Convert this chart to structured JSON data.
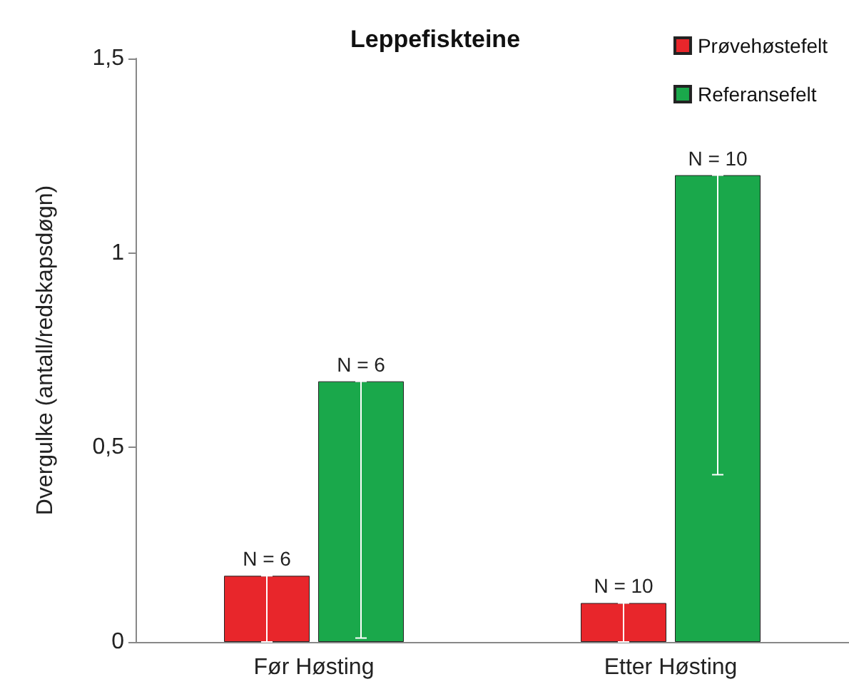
{
  "chart_data": {
    "type": "bar",
    "title": "Leppefiskteine",
    "ylabel": "Dvergulke (antall/redskapsdøgn)",
    "categories": [
      "Før Høsting",
      "Etter Høsting"
    ],
    "series": [
      {
        "name": "Prøvehøstefelt",
        "color": "#e8262b",
        "values": [
          0.17,
          0.1
        ],
        "errors": [
          [
            0,
            0.17
          ],
          [
            0,
            0.1
          ]
        ]
      },
      {
        "name": "Referansefelt",
        "color": "#1aa84b",
        "values": [
          0.67,
          1.2
        ],
        "errors": [
          [
            0.01,
            0.67
          ],
          [
            0.43,
            1.2
          ]
        ]
      }
    ],
    "annotations": [
      {
        "text": "N = 6",
        "x": "Før Høsting",
        "y": 0.17
      },
      {
        "text": "N = 6",
        "x": "Før Høsting",
        "y": 0.67
      },
      {
        "text": "N = 10",
        "x": "Etter Høsting",
        "y": 0.1
      },
      {
        "text": "N = 10",
        "x": "Etter Høsting",
        "y": 1.2
      }
    ],
    "ylim": [
      0,
      1.5
    ],
    "yticks": [
      {
        "value": 0,
        "label": "0"
      },
      {
        "value": 0.5,
        "label": "0,5"
      },
      {
        "value": 1,
        "label": "1"
      },
      {
        "value": 1.5,
        "label": "1,5"
      }
    ],
    "grid": false,
    "legend": "top right"
  }
}
